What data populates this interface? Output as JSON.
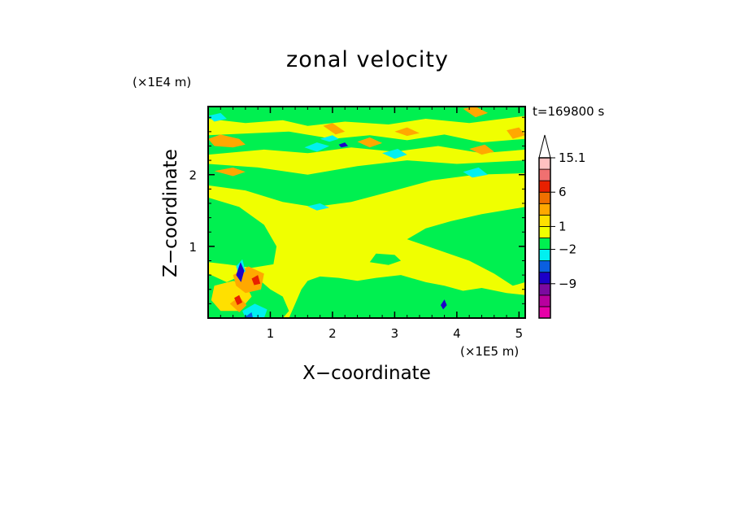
{
  "chart_data": {
    "type": "heatmap",
    "title": "zonal velocity",
    "xlabel": "X−coordinate",
    "ylabel": "Z−coordinate",
    "x_scale_label": "(×1E5 m)",
    "z_scale_label": "(×1E4 m)",
    "time_label": "t=169800 s",
    "x_ticks": [
      1,
      2,
      3,
      4,
      5
    ],
    "x_tick_labels": [
      "1",
      "2",
      "3",
      "4",
      "5"
    ],
    "y_ticks": [
      1,
      2
    ],
    "y_tick_labels": [
      "1",
      "2"
    ],
    "xlim": [
      0,
      5.1
    ],
    "ylim": [
      0,
      2.95
    ],
    "colorbar": {
      "levels": [
        {
          "color": "#e600a8"
        },
        {
          "color": "#b8009e"
        },
        {
          "color": "#7b0aa0"
        },
        {
          "color": "#1c00c8"
        },
        {
          "color": "#0a5fe0"
        },
        {
          "color": "#00f0f0"
        },
        {
          "color": "#00f050"
        },
        {
          "color": "#f0ff00"
        },
        {
          "color": "#ffe000"
        },
        {
          "color": "#ffa800"
        },
        {
          "color": "#f07000"
        },
        {
          "color": "#e82000"
        },
        {
          "color": "#f07070"
        },
        {
          "color": "#ffc0c0"
        }
      ],
      "labels": [
        {
          "text": "−9",
          "level": 2
        },
        {
          "text": "−2",
          "level": 5
        },
        {
          "text": "1",
          "level": 7
        },
        {
          "text": "6",
          "level": 10
        },
        {
          "text": "15.1",
          "level": 13
        }
      ]
    },
    "colors": {
      "background": "#f0ff00",
      "green": "#00f050",
      "cyan": "#00f0f0",
      "orange": "#ffa800",
      "yellow_orange": "#ffe000",
      "red": "#e82000",
      "blue": "#1c00c8",
      "mid_blue": "#0a5fe0"
    },
    "regions": [
      {
        "c": "green",
        "pts": [
          [
            0,
            2.95
          ],
          [
            5.1,
            2.95
          ],
          [
            5.1,
            2.82
          ],
          [
            4.2,
            2.72
          ],
          [
            3.5,
            2.78
          ],
          [
            2.9,
            2.7
          ],
          [
            2.2,
            2.74
          ],
          [
            1.6,
            2.68
          ],
          [
            1.2,
            2.76
          ],
          [
            0.6,
            2.72
          ],
          [
            0,
            2.78
          ]
        ]
      },
      {
        "c": "green",
        "pts": [
          [
            0,
            2.55
          ],
          [
            1.3,
            2.6
          ],
          [
            2.0,
            2.5
          ],
          [
            2.6,
            2.55
          ],
          [
            3.2,
            2.48
          ],
          [
            3.8,
            2.56
          ],
          [
            4.4,
            2.45
          ],
          [
            5.1,
            2.5
          ],
          [
            5.1,
            2.35
          ],
          [
            4.4,
            2.3
          ],
          [
            3.7,
            2.4
          ],
          [
            3.0,
            2.32
          ],
          [
            2.3,
            2.38
          ],
          [
            1.6,
            2.3
          ],
          [
            0.9,
            2.35
          ],
          [
            0,
            2.28
          ]
        ]
      },
      {
        "c": "green",
        "pts": [
          [
            0,
            2.15
          ],
          [
            0.8,
            2.1
          ],
          [
            1.6,
            2.0
          ],
          [
            2.4,
            2.12
          ],
          [
            3.2,
            2.2
          ],
          [
            4.0,
            2.15
          ],
          [
            5.1,
            2.2
          ],
          [
            5.1,
            2.02
          ],
          [
            4.3,
            2.0
          ],
          [
            3.6,
            1.92
          ],
          [
            3.0,
            1.78
          ],
          [
            2.3,
            1.62
          ],
          [
            1.7,
            1.55
          ],
          [
            1.2,
            1.62
          ],
          [
            0.6,
            1.78
          ],
          [
            0,
            1.85
          ]
        ]
      },
      {
        "c": "green",
        "pts": [
          [
            0,
            1.68
          ],
          [
            0.5,
            1.55
          ],
          [
            0.9,
            1.3
          ],
          [
            1.1,
            1.0
          ],
          [
            1.05,
            0.75
          ],
          [
            0.7,
            0.7
          ],
          [
            0.3,
            0.75
          ],
          [
            0,
            0.78
          ]
        ]
      },
      {
        "c": "green",
        "pts": [
          [
            3.2,
            1.1
          ],
          [
            3.5,
            1.25
          ],
          [
            3.9,
            1.35
          ],
          [
            4.4,
            1.45
          ],
          [
            5.1,
            1.55
          ],
          [
            5.1,
            0.5
          ],
          [
            4.9,
            0.45
          ],
          [
            4.6,
            0.62
          ],
          [
            4.2,
            0.8
          ],
          [
            3.7,
            0.95
          ]
        ]
      },
      {
        "c": "green",
        "pts": [
          [
            2.7,
            0.9
          ],
          [
            3.0,
            0.88
          ],
          [
            3.1,
            0.8
          ],
          [
            2.9,
            0.74
          ],
          [
            2.6,
            0.78
          ]
        ]
      },
      {
        "c": "green",
        "pts": [
          [
            1.8,
            0.58
          ],
          [
            2.1,
            0.56
          ],
          [
            2.4,
            0.52
          ],
          [
            2.7,
            0.56
          ],
          [
            3.1,
            0.6
          ],
          [
            3.5,
            0.5
          ],
          [
            3.8,
            0.45
          ],
          [
            4.1,
            0.38
          ],
          [
            4.4,
            0.42
          ],
          [
            4.8,
            0.35
          ],
          [
            5.1,
            0.32
          ],
          [
            5.1,
            0
          ],
          [
            1.3,
            0
          ],
          [
            1.4,
            0.2
          ],
          [
            1.5,
            0.4
          ],
          [
            1.6,
            0.52
          ]
        ]
      },
      {
        "c": "green",
        "pts": [
          [
            0,
            0.62
          ],
          [
            0.3,
            0.5
          ],
          [
            0.55,
            0.6
          ],
          [
            0.8,
            0.55
          ],
          [
            1.0,
            0.4
          ],
          [
            1.2,
            0.3
          ],
          [
            1.3,
            0.1
          ],
          [
            1.2,
            0
          ],
          [
            0,
            0
          ]
        ]
      },
      {
        "c": "yellow_orange",
        "pts": [
          [
            0.1,
            0.45
          ],
          [
            0.4,
            0.52
          ],
          [
            0.6,
            0.48
          ],
          [
            0.7,
            0.3
          ],
          [
            0.5,
            0.1
          ],
          [
            0.2,
            0.1
          ],
          [
            0.05,
            0.25
          ]
        ]
      },
      {
        "c": "orange",
        "pts": [
          [
            0,
            2.5
          ],
          [
            0.2,
            2.56
          ],
          [
            0.5,
            2.5
          ],
          [
            0.6,
            2.42
          ],
          [
            0.4,
            2.38
          ],
          [
            0.1,
            2.4
          ]
        ]
      },
      {
        "c": "orange",
        "pts": [
          [
            0.1,
            2.05
          ],
          [
            0.4,
            2.1
          ],
          [
            0.6,
            2.04
          ],
          [
            0.4,
            1.98
          ]
        ]
      },
      {
        "c": "orange",
        "pts": [
          [
            1.85,
            2.68
          ],
          [
            2.0,
            2.72
          ],
          [
            2.2,
            2.6
          ],
          [
            2.05,
            2.56
          ]
        ]
      },
      {
        "c": "orange",
        "pts": [
          [
            2.4,
            2.46
          ],
          [
            2.6,
            2.52
          ],
          [
            2.8,
            2.44
          ],
          [
            2.6,
            2.38
          ]
        ]
      },
      {
        "c": "orange",
        "pts": [
          [
            3.0,
            2.6
          ],
          [
            3.2,
            2.66
          ],
          [
            3.4,
            2.58
          ],
          [
            3.2,
            2.54
          ]
        ]
      },
      {
        "c": "orange",
        "pts": [
          [
            4.1,
            2.92
          ],
          [
            4.3,
            2.95
          ],
          [
            4.5,
            2.86
          ],
          [
            4.3,
            2.8
          ]
        ]
      },
      {
        "c": "orange",
        "pts": [
          [
            4.2,
            2.36
          ],
          [
            4.45,
            2.42
          ],
          [
            4.6,
            2.32
          ],
          [
            4.4,
            2.28
          ]
        ]
      },
      {
        "c": "orange",
        "pts": [
          [
            4.8,
            2.62
          ],
          [
            5.0,
            2.66
          ],
          [
            5.1,
            2.55
          ],
          [
            4.9,
            2.5
          ]
        ]
      },
      {
        "c": "orange",
        "pts": [
          [
            0.4,
            0.6
          ],
          [
            0.65,
            0.72
          ],
          [
            0.9,
            0.62
          ],
          [
            0.85,
            0.4
          ],
          [
            0.6,
            0.35
          ],
          [
            0.45,
            0.45
          ]
        ]
      },
      {
        "c": "orange",
        "pts": [
          [
            0.35,
            0.2
          ],
          [
            0.5,
            0.3
          ],
          [
            0.62,
            0.18
          ],
          [
            0.5,
            0.08
          ]
        ]
      },
      {
        "c": "red",
        "pts": [
          [
            0.42,
            0.28
          ],
          [
            0.5,
            0.32
          ],
          [
            0.55,
            0.22
          ],
          [
            0.47,
            0.18
          ]
        ]
      },
      {
        "c": "red",
        "pts": [
          [
            0.7,
            0.55
          ],
          [
            0.8,
            0.6
          ],
          [
            0.84,
            0.48
          ],
          [
            0.74,
            0.46
          ]
        ]
      },
      {
        "c": "cyan",
        "pts": [
          [
            0,
            2.82
          ],
          [
            0.2,
            2.86
          ],
          [
            0.3,
            2.78
          ],
          [
            0.1,
            2.74
          ]
        ]
      },
      {
        "c": "cyan",
        "pts": [
          [
            1.55,
            2.38
          ],
          [
            1.75,
            2.45
          ],
          [
            1.95,
            2.4
          ],
          [
            1.75,
            2.32
          ]
        ]
      },
      {
        "c": "cyan",
        "pts": [
          [
            1.8,
            2.5
          ],
          [
            2.0,
            2.55
          ],
          [
            2.1,
            2.5
          ],
          [
            1.95,
            2.46
          ]
        ]
      },
      {
        "c": "cyan",
        "pts": [
          [
            2.8,
            2.3
          ],
          [
            3.05,
            2.36
          ],
          [
            3.2,
            2.28
          ],
          [
            3.0,
            2.22
          ]
        ]
      },
      {
        "c": "cyan",
        "pts": [
          [
            4.1,
            2.04
          ],
          [
            4.35,
            2.1
          ],
          [
            4.5,
            2.0
          ],
          [
            4.25,
            1.96
          ]
        ]
      },
      {
        "c": "cyan",
        "pts": [
          [
            1.6,
            1.56
          ],
          [
            1.8,
            1.6
          ],
          [
            1.95,
            1.54
          ],
          [
            1.75,
            1.5
          ]
        ]
      },
      {
        "c": "cyan",
        "pts": [
          [
            0.55,
            0.1
          ],
          [
            0.75,
            0.2
          ],
          [
            0.95,
            0.12
          ],
          [
            0.9,
            0
          ],
          [
            0.6,
            0
          ]
        ]
      },
      {
        "c": "cyan",
        "pts": [
          [
            0.45,
            0.72
          ],
          [
            0.55,
            0.82
          ],
          [
            0.6,
            0.65
          ],
          [
            0.5,
            0.6
          ]
        ]
      },
      {
        "c": "blue",
        "pts": [
          [
            0.45,
            0.6
          ],
          [
            0.52,
            0.78
          ],
          [
            0.58,
            0.66
          ],
          [
            0.53,
            0.5
          ]
        ]
      },
      {
        "c": "blue",
        "pts": [
          [
            2.1,
            2.42
          ],
          [
            2.2,
            2.45
          ],
          [
            2.25,
            2.4
          ],
          [
            2.14,
            2.38
          ]
        ]
      },
      {
        "c": "blue",
        "pts": [
          [
            3.74,
            0.18
          ],
          [
            3.8,
            0.26
          ],
          [
            3.84,
            0.18
          ],
          [
            3.78,
            0.12
          ]
        ]
      },
      {
        "c": "mid_blue",
        "pts": [
          [
            0.6,
            0.02
          ],
          [
            0.7,
            0.08
          ],
          [
            0.72,
            0
          ],
          [
            0.62,
            0
          ]
        ]
      }
    ]
  }
}
